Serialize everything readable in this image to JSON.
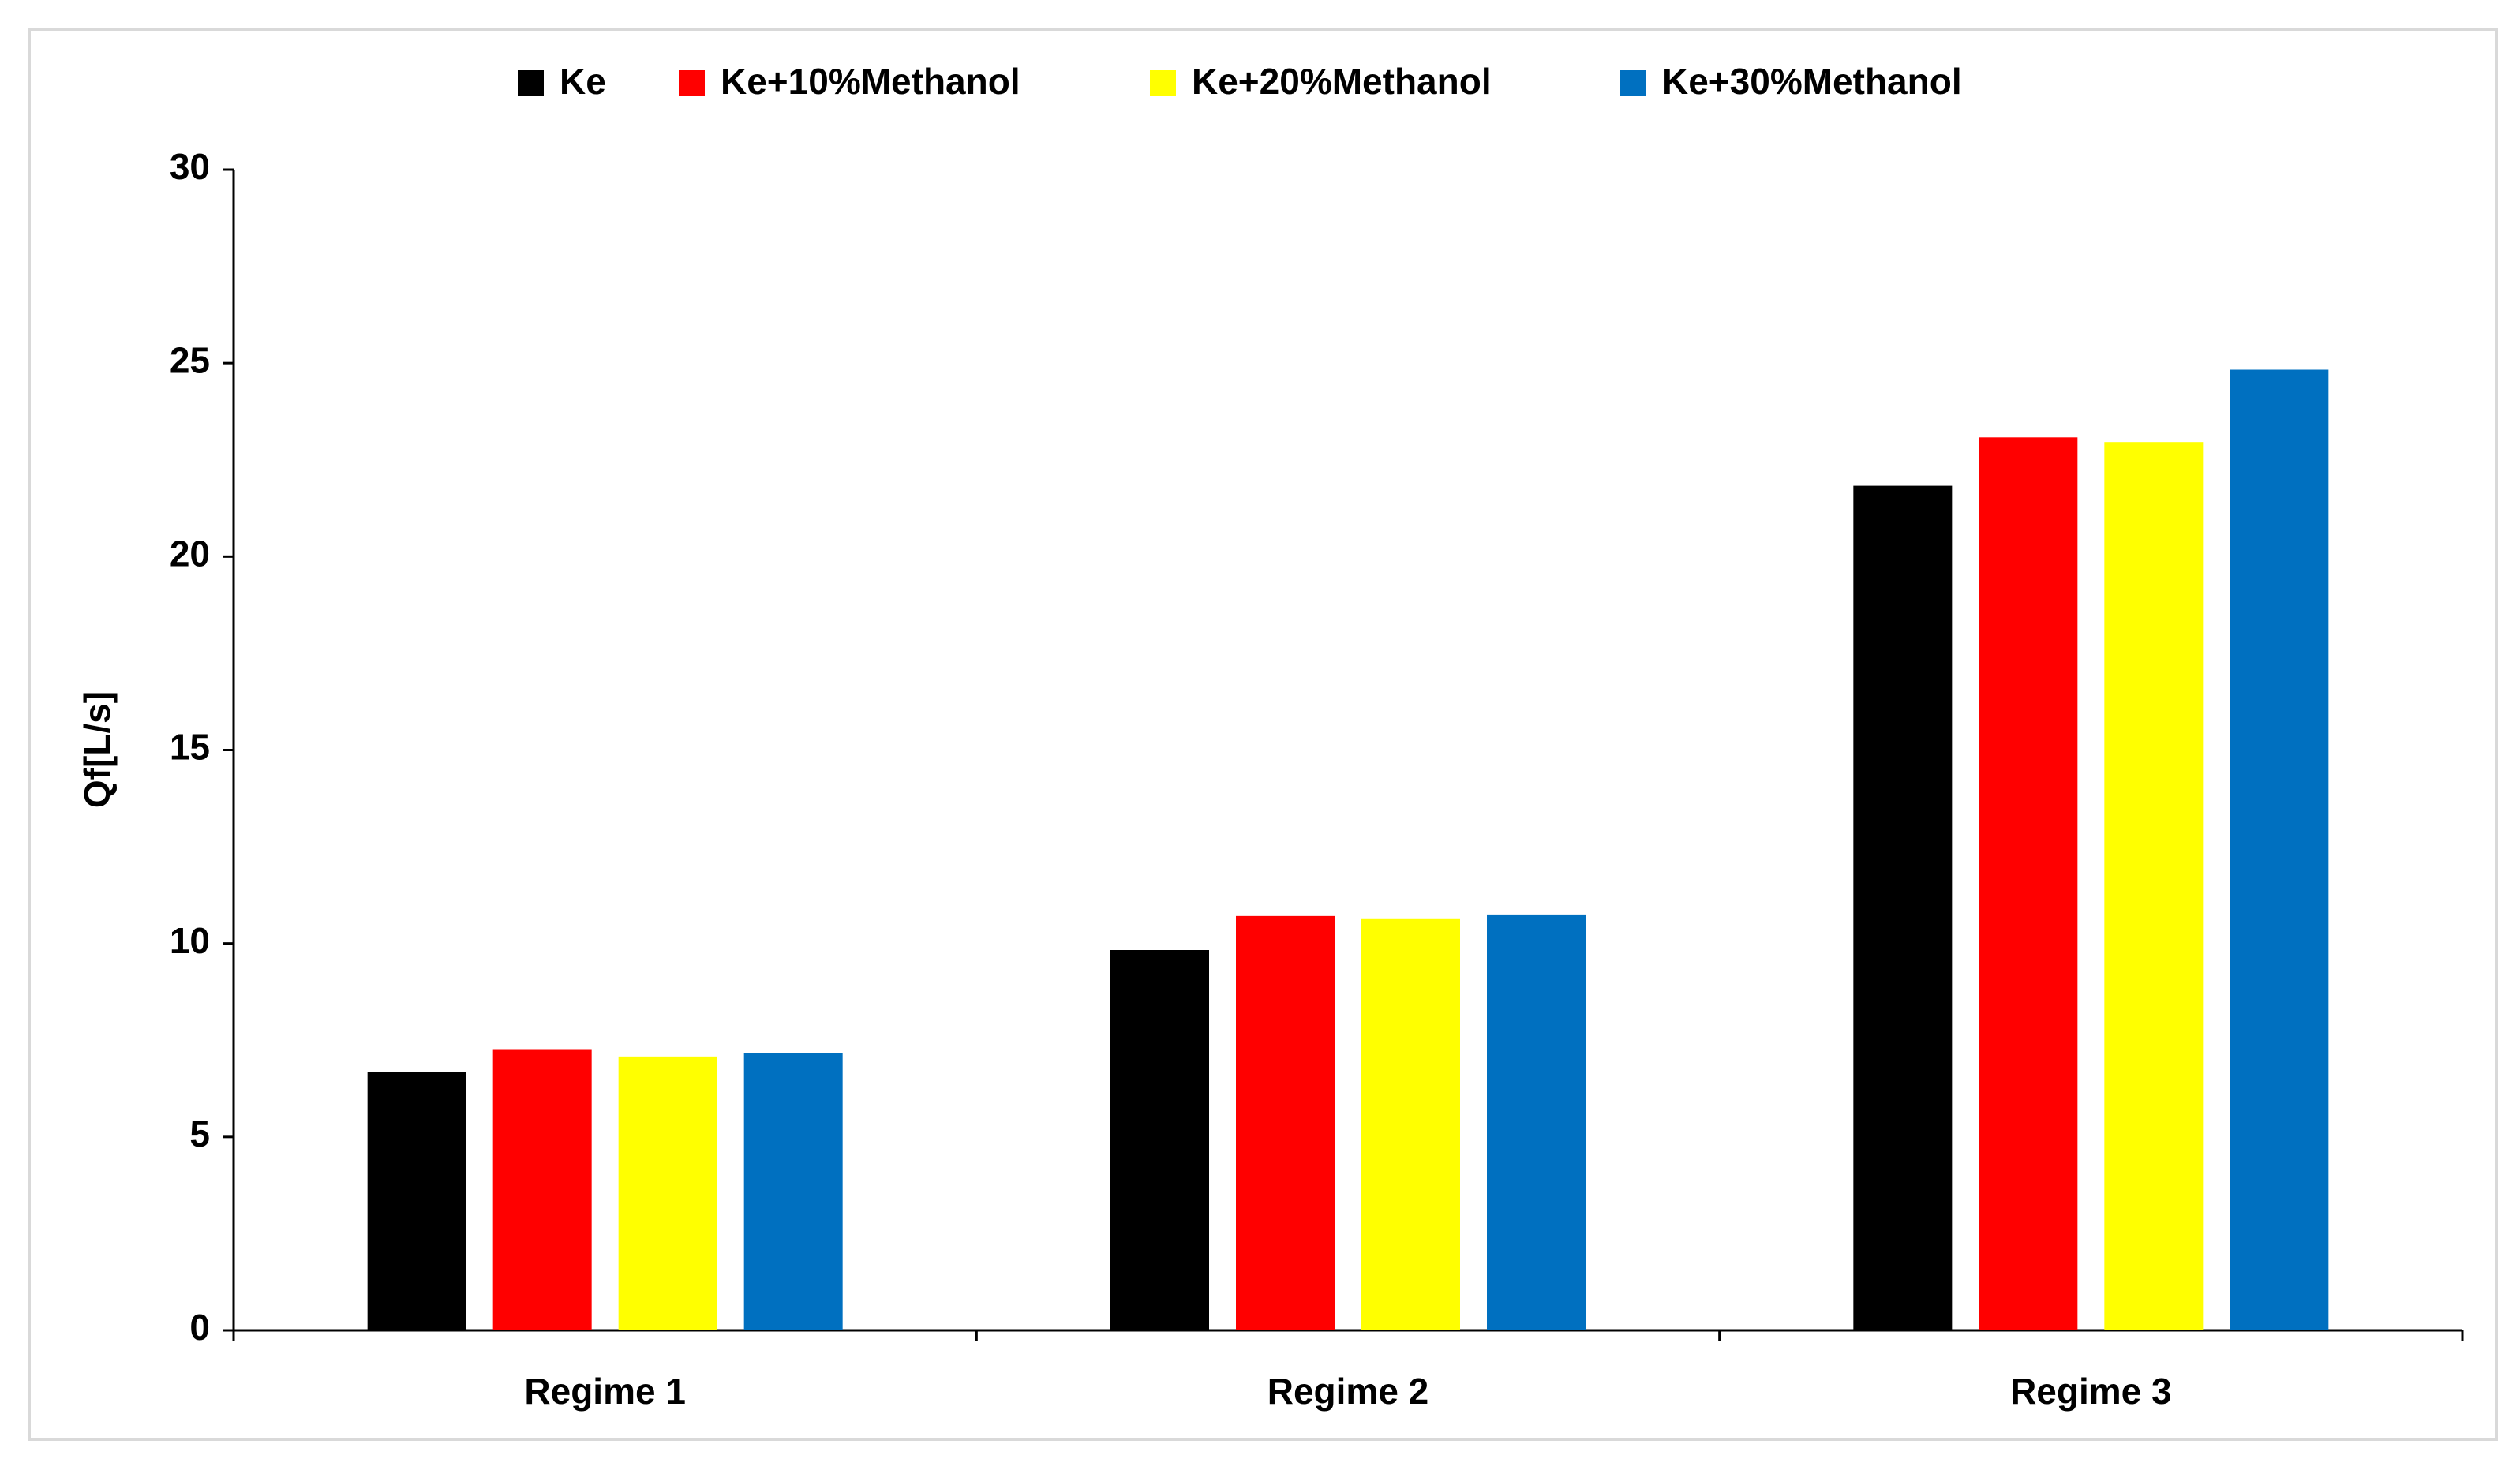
{
  "chart_data": {
    "type": "bar",
    "ylabel": "Qf[L/s]",
    "categories": [
      "Regime 1",
      "Regime 2",
      "Regime 3"
    ],
    "series": [
      {
        "name": "Ke",
        "color": "#000000",
        "values": [
          6.67,
          9.83,
          21.83
        ]
      },
      {
        "name": "Ke+10%Methanol",
        "color": "#ff0000",
        "values": [
          7.25,
          10.71,
          23.08
        ]
      },
      {
        "name": "Ke+20%Methanol",
        "color": "#ffff00",
        "values": [
          7.08,
          10.63,
          22.96
        ]
      },
      {
        "name": "Ke+30%Methanol",
        "color": "#0070c0",
        "values": [
          7.17,
          10.75,
          24.83
        ]
      }
    ],
    "ylim": [
      0,
      30
    ],
    "yticks": [
      0,
      5,
      10,
      15,
      20,
      25,
      30
    ],
    "legend": "top"
  }
}
